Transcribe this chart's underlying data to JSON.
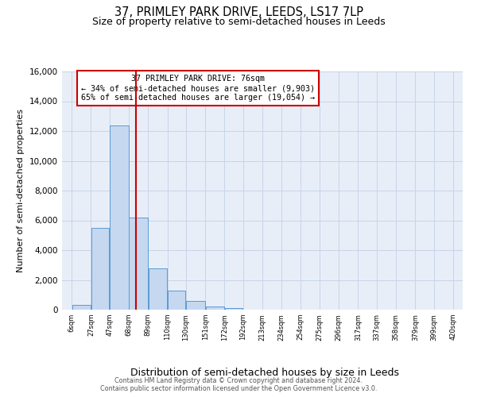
{
  "title": "37, PRIMLEY PARK DRIVE, LEEDS, LS17 7LP",
  "subtitle": "Size of property relative to semi-detached houses in Leeds",
  "xlabel": "Distribution of semi-detached houses by size in Leeds",
  "ylabel": "Number of semi-detached properties",
  "bin_labels": [
    "6sqm",
    "27sqm",
    "47sqm",
    "68sqm",
    "89sqm",
    "110sqm",
    "130sqm",
    "151sqm",
    "172sqm",
    "192sqm",
    "213sqm",
    "234sqm",
    "254sqm",
    "275sqm",
    "296sqm",
    "317sqm",
    "337sqm",
    "358sqm",
    "379sqm",
    "399sqm",
    "420sqm"
  ],
  "bin_edges": [
    6,
    27,
    47,
    68,
    89,
    110,
    130,
    151,
    172,
    192,
    213,
    234,
    254,
    275,
    296,
    317,
    337,
    358,
    379,
    399,
    420
  ],
  "bar_values": [
    300,
    5500,
    12400,
    6200,
    2800,
    1300,
    600,
    200,
    100,
    0,
    0,
    0,
    0,
    0,
    0,
    0,
    0,
    0,
    0,
    0
  ],
  "bar_color": "#c5d8f0",
  "bar_edge_color": "#5b9bd5",
  "vline_color": "#cc0000",
  "vline_x": 76,
  "annotation_title": "37 PRIMLEY PARK DRIVE: 76sqm",
  "annotation_line1": "← 34% of semi-detached houses are smaller (9,903)",
  "annotation_line2": "65% of semi-detached houses are larger (19,054) →",
  "annotation_box_color": "#ffffff",
  "annotation_box_edge": "#cc0000",
  "ylim": [
    0,
    16000
  ],
  "yticks": [
    0,
    2000,
    4000,
    6000,
    8000,
    10000,
    12000,
    14000,
    16000
  ],
  "footer1": "Contains HM Land Registry data © Crown copyright and database right 2024.",
  "footer2": "Contains public sector information licensed under the Open Government Licence v3.0.",
  "background_color": "#ffffff",
  "axes_bg_color": "#e8eef8",
  "grid_color": "#c8d4e8",
  "title_fontsize": 10.5,
  "subtitle_fontsize": 9
}
